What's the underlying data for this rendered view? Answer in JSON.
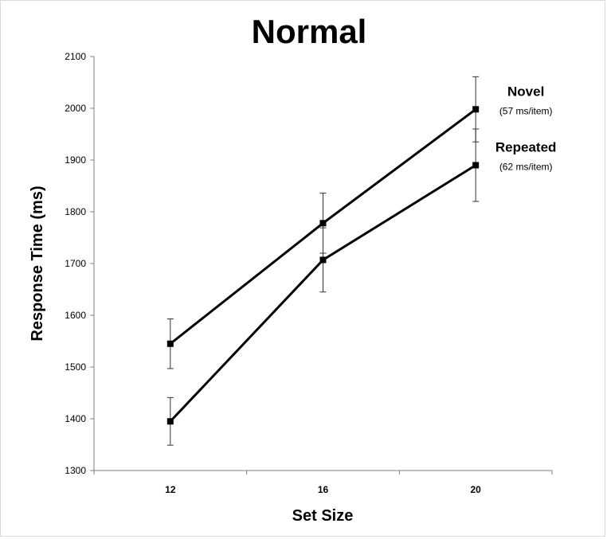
{
  "chart_data": {
    "type": "line",
    "title": "Normal",
    "xlabel": "Set Size",
    "ylabel": "Response Time (ms)",
    "categories": [
      "12",
      "16",
      "20"
    ],
    "ylim": [
      1300,
      2100
    ],
    "yticks": [
      "1300",
      "1400",
      "1500",
      "1600",
      "1700",
      "1800",
      "1900",
      "2000",
      "2100"
    ],
    "grid": false,
    "series": [
      {
        "name": "Novel",
        "slope_label": "(57 ms/item)",
        "values": [
          1545,
          1778,
          1998
        ],
        "error": [
          48,
          58,
          63
        ]
      },
      {
        "name": "Repeated",
        "slope_label": "(62 ms/item)",
        "values": [
          1395,
          1707,
          1890
        ],
        "error": [
          46,
          62,
          70
        ]
      }
    ],
    "line_color": "#000000"
  }
}
